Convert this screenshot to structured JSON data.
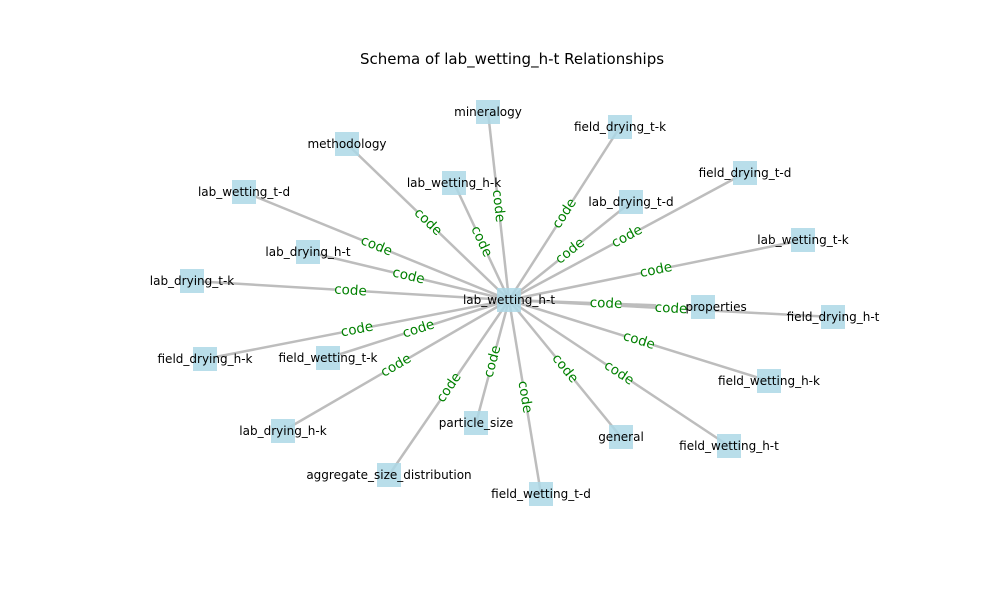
{
  "title": "Schema of lab_wetting_h-t Relationships",
  "colors": {
    "node_fill": "#add8e6",
    "edge_stroke": "#bdbdbd",
    "edge_label": "#008000",
    "text": "#000000"
  },
  "center": {
    "id": "center",
    "label": "lab_wetting_h-t"
  },
  "nodes": [
    {
      "id": "mineralogy",
      "label": "mineralogy",
      "edge_label": "code"
    },
    {
      "id": "methodology",
      "label": "methodology",
      "edge_label": "code"
    },
    {
      "id": "lab_wetting_h-k",
      "label": "lab_wetting_h-k",
      "edge_label": "code"
    },
    {
      "id": "field_drying_t-k",
      "label": "field_drying_t-k",
      "edge_label": "code"
    },
    {
      "id": "field_drying_t-d",
      "label": "field_drying_t-d",
      "edge_label": "code"
    },
    {
      "id": "lab_drying_t-d",
      "label": "lab_drying_t-d",
      "edge_label": "code"
    },
    {
      "id": "lab_wetting_t-d",
      "label": "lab_wetting_t-d",
      "edge_label": "code"
    },
    {
      "id": "lab_drying_h-t",
      "label": "lab_drying_h-t",
      "edge_label": "code"
    },
    {
      "id": "lab_wetting_t-k",
      "label": "lab_wetting_t-k",
      "edge_label": "code"
    },
    {
      "id": "lab_drying_t-k",
      "label": "lab_drying_t-k",
      "edge_label": "code"
    },
    {
      "id": "soil_properties",
      "label": "soil_properties",
      "edge_label": "code"
    },
    {
      "id": "field_drying_h-t",
      "label": "field_drying_h-t",
      "edge_label": "code"
    },
    {
      "id": "field_drying_h-k",
      "label": "field_drying_h-k",
      "edge_label": "code"
    },
    {
      "id": "field_wetting_t-k",
      "label": "field_wetting_t-k",
      "edge_label": "code"
    },
    {
      "id": "field_wetting_h-k",
      "label": "field_wetting_h-k",
      "edge_label": "code"
    },
    {
      "id": "lab_drying_h-k",
      "label": "lab_drying_h-k",
      "edge_label": "code"
    },
    {
      "id": "field_wetting_h-t",
      "label": "field_wetting_h-t",
      "edge_label": "code"
    },
    {
      "id": "particle_size",
      "label": "particle_size",
      "edge_label": "code"
    },
    {
      "id": "general",
      "label": "general",
      "edge_label": "code"
    },
    {
      "id": "aggregate_size_distribution",
      "label": "aggregate_size_distribution",
      "edge_label": "code"
    },
    {
      "id": "field_wetting_t-d",
      "label": "field_wetting_t-d",
      "edge_label": "code"
    }
  ]
}
